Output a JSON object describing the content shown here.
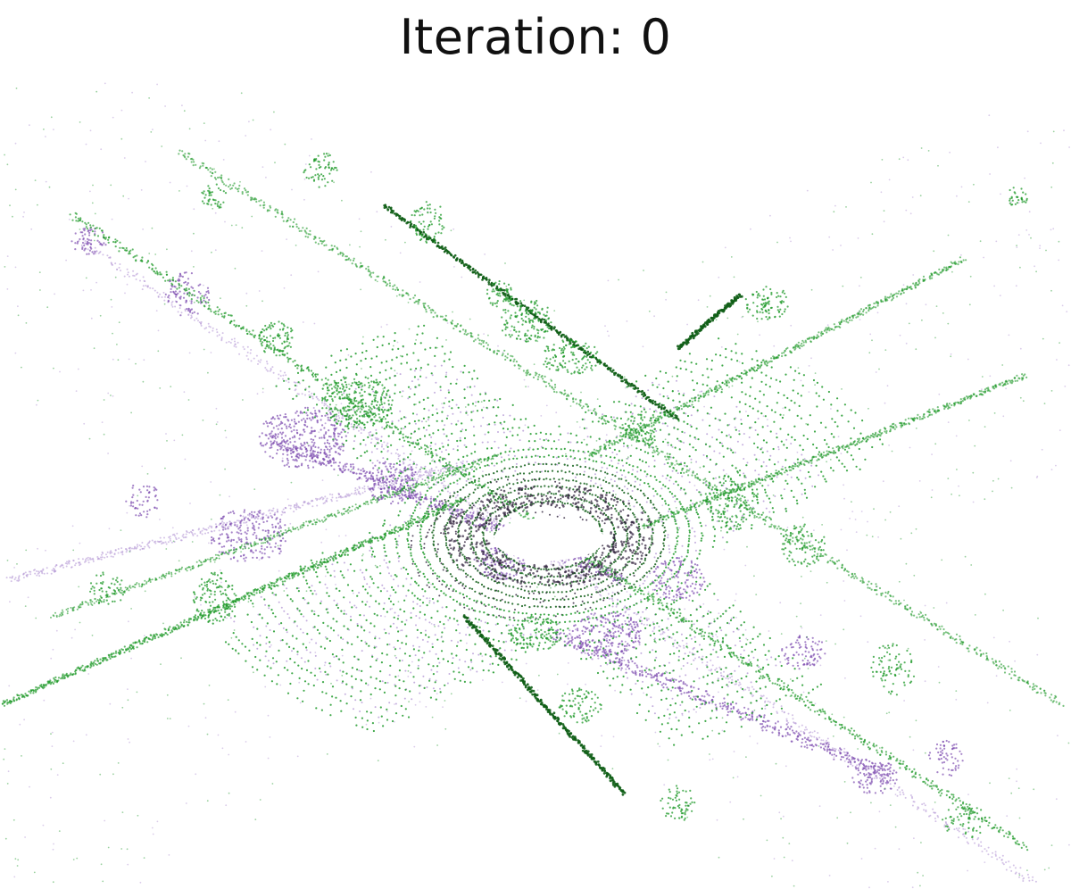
{
  "title": "Iteration: 0",
  "colors": {
    "source_cloud": "#7f4fb0",
    "source_cloud_light": "#b59ad6",
    "source_cloud_dark": "#2d1f3a",
    "target_cloud": "#1f9a2a",
    "target_cloud_dark": "#0f5e16",
    "background": "#ffffff"
  }
}
